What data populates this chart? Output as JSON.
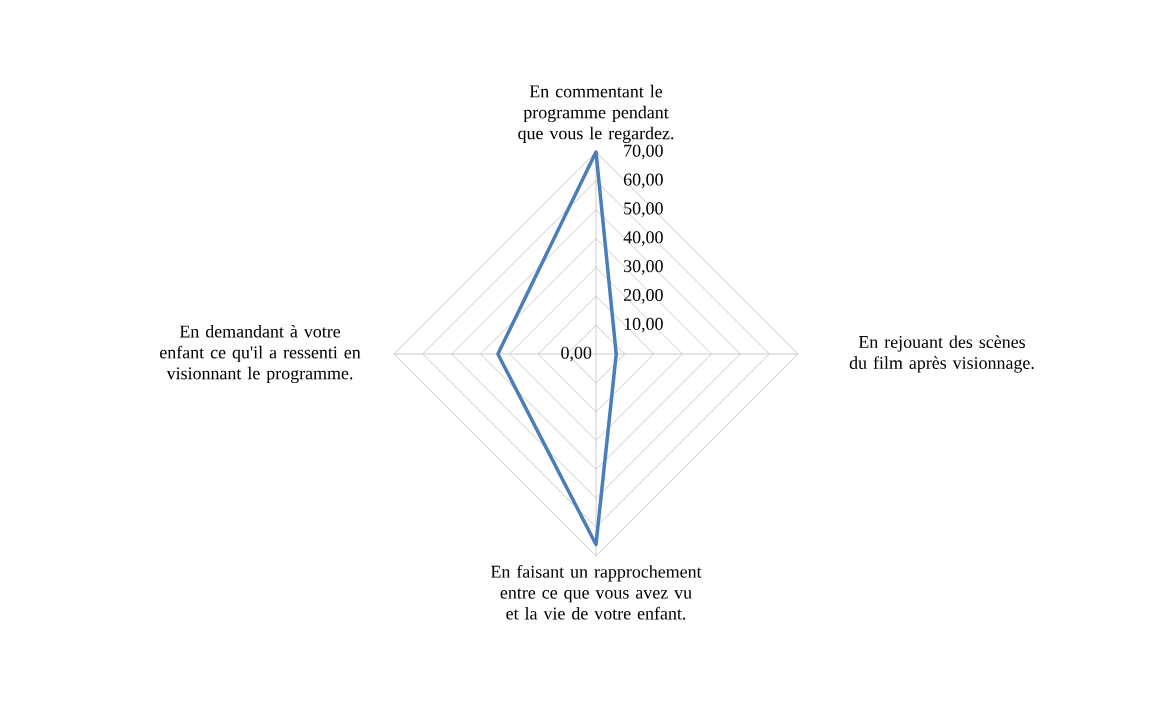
{
  "chart_data": {
    "type": "radar",
    "categories": [
      "En commentant le programme pendant que vous le regardez.",
      "En rejouant des scènes du film après visionnage.",
      "En faisant un rapprochement entre ce que vous avez vu et la vie de votre enfant.",
      "En demandant à votre enfant ce qu'il a ressenti en visionnant le programme."
    ],
    "series": [
      {
        "color": "#4a7ebb",
        "values": [
          70,
          7,
          66,
          34
        ]
      }
    ],
    "ylim": [
      0,
      70
    ],
    "yticks": [
      {
        "value": 0,
        "label": "0,00"
      },
      {
        "value": 10,
        "label": "10,00"
      },
      {
        "value": 20,
        "label": "20,00"
      },
      {
        "value": 30,
        "label": "30,00"
      },
      {
        "value": 40,
        "label": "40,00"
      },
      {
        "value": 50,
        "label": "50,00"
      },
      {
        "value": 60,
        "label": "60,00"
      },
      {
        "value": 70,
        "label": "70,00"
      }
    ],
    "grid": true,
    "marker": "none",
    "line_style": "solid"
  }
}
